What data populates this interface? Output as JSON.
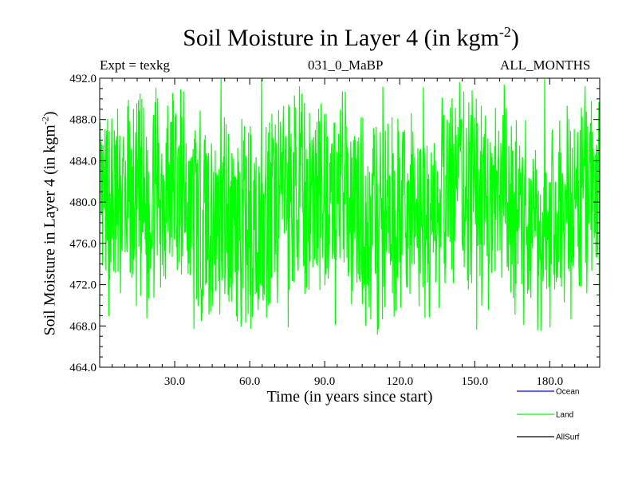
{
  "chart_data": {
    "type": "line",
    "title": {
      "main": "Soil Moisture in Layer 4 (in kgm",
      "sup": "-2",
      "close": ")"
    },
    "ylabel": {
      "main": "Soil Moisture in Layer 4 (in kgm",
      "sup": "-2",
      "close": ")"
    },
    "xlabel": "Time (in years since start)",
    "expt": "Expt = texkg",
    "subtitle_center": "031_0_MaBP",
    "subtitle_right": "ALL_MONTHS",
    "xlim": [
      0,
      200
    ],
    "ylim": [
      464,
      492
    ],
    "xticks": [
      30,
      60,
      90,
      120,
      150,
      180
    ],
    "xtick_labels": [
      "30.0",
      "60.0",
      "90.0",
      "120.0",
      "150.0",
      "180.0"
    ],
    "yticks": [
      464,
      468,
      472,
      476,
      480,
      484,
      488,
      492
    ],
    "ytick_labels": [
      "464.0",
      "468.0",
      "472.0",
      "476.0",
      "480.0",
      "484.0",
      "488.0",
      "492.0"
    ],
    "legend": [
      {
        "name": "Ocean",
        "color": "#0000ff"
      },
      {
        "name": "Land",
        "color": "#00ff00"
      },
      {
        "name": "AllSurf",
        "color": "#000000"
      }
    ],
    "series": [
      {
        "name": "Land",
        "color": "#00ff00",
        "x_start": 0,
        "x_end": 200,
        "samples": 1200,
        "mean": 479.5,
        "envelope_low": 471.0,
        "envelope_high": 488.5,
        "observed_min": 467.6,
        "observed_max": 492.0
      }
    ]
  }
}
